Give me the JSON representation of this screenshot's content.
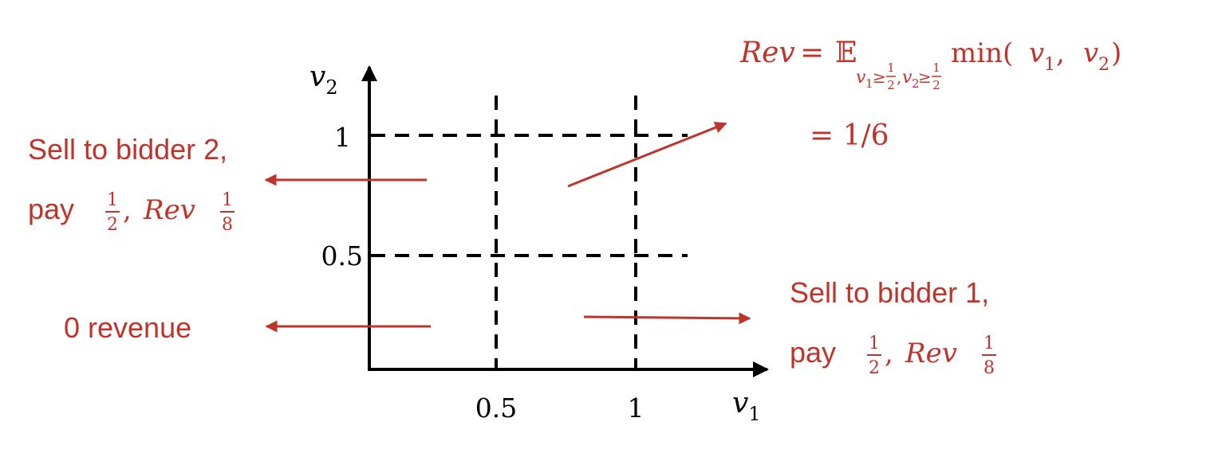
{
  "axes": {
    "x_label": "v",
    "x_label_sub": "1",
    "y_label": "v",
    "y_label_sub": "2",
    "x_ticks": [
      "0.5",
      "1"
    ],
    "y_ticks": [
      "1",
      "0.5"
    ]
  },
  "annotations": {
    "sell_bidder_2": {
      "line1": "Sell to bidder 2,",
      "pay": "pay",
      "frac_num": "1",
      "frac_den": "2",
      "comma": ",",
      "rev": "Rev",
      "rev_num": "1",
      "rev_den": "8"
    },
    "sell_bidder_1": {
      "line1": "Sell to bidder 1,",
      "pay": "pay",
      "frac_num": "1",
      "frac_den": "2",
      "comma": ",",
      "rev": "Rev",
      "rev_num": "1",
      "rev_den": "8"
    },
    "zero_revenue": "0 revenue",
    "top_formula": {
      "rev": "Rev",
      "equals": "=",
      "expect": "𝔼",
      "sub_v1": "v",
      "sub_1": "1",
      "sub_geq": "≥",
      "sub_half_num": "1",
      "sub_half_den": "2",
      "sub_comma": ",",
      "sub_v2": "v",
      "sub_2": "2",
      "sub_geq2": "≥",
      "sub_half_num2": "1",
      "sub_half_den2": "2",
      "min": "min(",
      "arg_v1": "v",
      "arg_1": "1",
      "arg_sep": ", ",
      "arg_v2": "v",
      "arg_2": "2",
      "close": ")",
      "result": "= 1/6"
    }
  },
  "colors": {
    "annotation": "#c0332b",
    "axis": "#000000"
  }
}
